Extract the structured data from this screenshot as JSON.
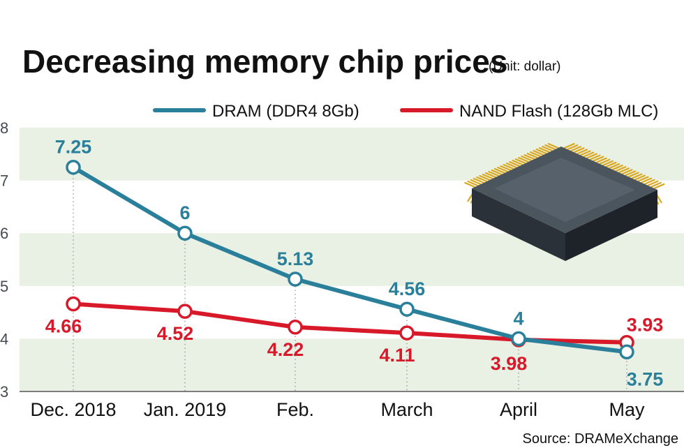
{
  "title": "Decreasing memory chip prices",
  "unit": "(Unit: dollar)",
  "source": "Source: DRAMeXchange",
  "colors": {
    "dram": "#2a7f9a",
    "nand": "#d7192a",
    "band": "#e9f0e4",
    "guide": "#999999"
  },
  "chart_data": {
    "type": "line",
    "title": "Decreasing memory chip prices",
    "categories": [
      "Dec. 2018",
      "Jan. 2019",
      "Feb.",
      "March",
      "April",
      "May"
    ],
    "ylim": [
      3,
      8
    ],
    "yticks": [
      "3",
      "4",
      "5",
      "6",
      "7",
      "8"
    ],
    "grid": "alternating horizontal bands",
    "legend": "top-right",
    "series": [
      {
        "name": "DRAM (DDR4 8Gb)",
        "values": [
          7.25,
          6,
          5.13,
          4.56,
          4,
          3.75
        ],
        "labels": [
          "7.25",
          "6",
          "5.13",
          "4.56",
          "4",
          "3.75"
        ]
      },
      {
        "name": "NAND Flash (128Gb MLC)",
        "values": [
          4.66,
          4.52,
          4.22,
          4.11,
          3.98,
          3.93
        ],
        "labels": [
          "4.66",
          "4.52",
          "4.22",
          "4.11",
          "3.98",
          "3.93"
        ]
      }
    ]
  }
}
